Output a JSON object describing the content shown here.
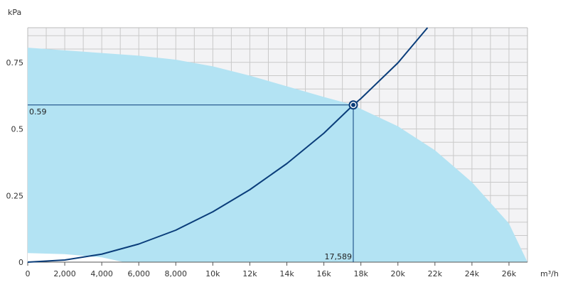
{
  "chart_data": {
    "type": "line",
    "y_unit": "kPa",
    "x_unit": "m³/h",
    "xlim": [
      0,
      27000
    ],
    "ylim": [
      0,
      0.88
    ],
    "x_ticks": [
      {
        "value": 0,
        "label": "0"
      },
      {
        "value": 2000,
        "label": "2,000"
      },
      {
        "value": 4000,
        "label": "4,000"
      },
      {
        "value": 6000,
        "label": "6,000"
      },
      {
        "value": 8000,
        "label": "8,000"
      },
      {
        "value": 10000,
        "label": "10k"
      },
      {
        "value": 12000,
        "label": "12k"
      },
      {
        "value": 14000,
        "label": "14k"
      },
      {
        "value": 16000,
        "label": "16k"
      },
      {
        "value": 18000,
        "label": "18k"
      },
      {
        "value": 20000,
        "label": "20k"
      },
      {
        "value": 22000,
        "label": "22k"
      },
      {
        "value": 24000,
        "label": "24k"
      },
      {
        "value": 26000,
        "label": "26k"
      }
    ],
    "y_ticks": [
      {
        "value": 0,
        "label": "0"
      },
      {
        "value": 0.25,
        "label": "0.25"
      },
      {
        "value": 0.5,
        "label": "0.5"
      },
      {
        "value": 0.75,
        "label": "0.75"
      }
    ],
    "grid": true,
    "operating_range": {
      "upper": [
        [
          0,
          0.805
        ],
        [
          2000,
          0.795
        ],
        [
          4000,
          0.785
        ],
        [
          6000,
          0.775
        ],
        [
          8000,
          0.76
        ],
        [
          10000,
          0.735
        ],
        [
          12000,
          0.7
        ],
        [
          14000,
          0.66
        ],
        [
          16000,
          0.62
        ],
        [
          17589,
          0.59
        ],
        [
          18000,
          0.575
        ],
        [
          20000,
          0.51
        ],
        [
          22000,
          0.42
        ],
        [
          24000,
          0.3
        ],
        [
          26000,
          0.145
        ],
        [
          27000,
          0.0
        ]
      ],
      "lower": [
        [
          0,
          0.034
        ],
        [
          2000,
          0.03
        ],
        [
          4000,
          0.018
        ],
        [
          5200,
          0.0
        ]
      ]
    },
    "system_curve": {
      "x": [
        0,
        2000,
        4000,
        6000,
        8000,
        10000,
        12000,
        14000,
        16000,
        17589,
        18000,
        20000,
        21600
      ],
      "y": [
        0,
        0.008,
        0.03,
        0.068,
        0.12,
        0.189,
        0.272,
        0.37,
        0.484,
        0.59,
        0.614,
        0.748,
        0.88
      ]
    },
    "operating_point": {
      "x": 17589,
      "y": 0.59,
      "x_label": "17,589",
      "y_label": "0.59"
    },
    "colors": {
      "range_fill": "#b3e3f3",
      "curve": "#0a3d7a",
      "grid": "#c9c9c9",
      "plot_bg": "#f3f3f5"
    }
  }
}
